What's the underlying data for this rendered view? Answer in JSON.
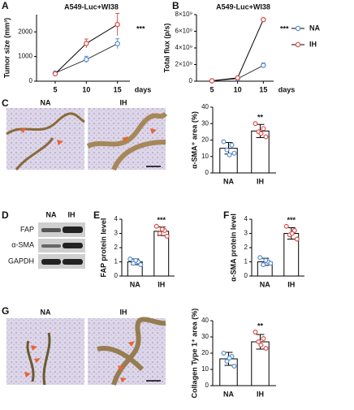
{
  "panels": [
    "A",
    "B",
    "C",
    "D",
    "E",
    "F",
    "G"
  ],
  "images": {
    "C": [
      "NA",
      "IH"
    ],
    "G": [
      "NA",
      "IH"
    ]
  },
  "blot": {
    "columns": [
      "NA",
      "IH"
    ],
    "rows": [
      "FAP",
      "α-SMA",
      "GAPDH"
    ]
  },
  "chart_data": [
    {
      "type": "line",
      "title": "A549-Luc+WI38",
      "ylabel": "Tumor size (mm³)",
      "xlabel": "days",
      "x": [
        5,
        10,
        15
      ],
      "xticks": [
        5,
        10,
        15
      ],
      "xlim": [
        2,
        17
      ],
      "ylim": [
        0,
        2700
      ],
      "yticks": [
        0,
        1000,
        2000
      ],
      "annotation": "***",
      "series": [
        {
          "color": "#5b8fd1",
          "values": [
            330,
            880,
            1520
          ],
          "errors": [
            50,
            130,
            200
          ]
        },
        {
          "color": "#d9534f",
          "values": [
            300,
            1530,
            2300
          ],
          "errors": [
            60,
            180,
            450
          ]
        }
      ]
    },
    {
      "type": "line",
      "title": "A549-Luc+WI38",
      "ylabel": "Total flux (p/s)",
      "xlabel": "days",
      "x": [
        5,
        10,
        15
      ],
      "xticks": [
        5,
        10,
        15
      ],
      "xlim": [
        2,
        17
      ],
      "ylim": [
        0,
        8000000000
      ],
      "yticks": [
        0,
        {
          "value": 2000000000,
          "label": "2×10⁹"
        },
        {
          "value": 4000000000,
          "label": "4×10⁹"
        },
        {
          "value": 6000000000,
          "label": "6×10⁹"
        },
        {
          "value": 8000000000,
          "label": "8×10⁹"
        }
      ],
      "annotation": "***",
      "legend": "right",
      "series": [
        {
          "name": "NA",
          "color": "#5b8fd1",
          "values": [
            50000000,
            300000000,
            1900000000
          ],
          "errors": [
            20000000,
            80000000,
            300000000
          ]
        },
        {
          "name": "IH",
          "color": "#d9534f",
          "values": [
            50000000,
            400000000,
            7400000000
          ],
          "errors": [
            20000000,
            100000000,
            100000000
          ]
        }
      ]
    },
    {
      "type": "bar",
      "ylabel": "α-SMA⁺ area (%)",
      "categories": [
        "NA",
        "IH"
      ],
      "ylim": [
        0,
        40
      ],
      "yticks": [
        0,
        10,
        20,
        30,
        40
      ],
      "values": [
        15,
        25.5
      ],
      "errors": [
        3.5,
        4
      ],
      "annotation": "**",
      "point_colors": [
        "#5b8fd1",
        "#d9534f"
      ],
      "points": [
        [
          19,
          17,
          14,
          12,
          11
        ],
        [
          30,
          27,
          25,
          22,
          24
        ]
      ]
    },
    {
      "type": "bar",
      "ylabel": "FAP protein level",
      "categories": [
        "NA",
        "IH"
      ],
      "ylim": [
        0,
        4
      ],
      "yticks": [
        0,
        1,
        2,
        3,
        4
      ],
      "values": [
        1,
        3.15
      ],
      "errors": [
        0.2,
        0.3
      ],
      "annotation": "***",
      "point_colors": [
        "#5b8fd1",
        "#d9534f"
      ],
      "points": [
        [
          1.2,
          1.0,
          0.9,
          0.8,
          1.1
        ],
        [
          3.5,
          3.2,
          3.0,
          2.8,
          3.3
        ]
      ]
    },
    {
      "type": "bar",
      "ylabel": "α-SMA protein level",
      "categories": [
        "NA",
        "IH"
      ],
      "ylim": [
        0,
        4
      ],
      "yticks": [
        0,
        1,
        2,
        3,
        4
      ],
      "values": [
        1,
        3
      ],
      "errors": [
        0.25,
        0.4
      ],
      "annotation": "***",
      "point_colors": [
        "#5b8fd1",
        "#d9534f"
      ],
      "points": [
        [
          1.3,
          1.0,
          0.8,
          0.9,
          1.1
        ],
        [
          3.5,
          3.2,
          2.9,
          2.6,
          3.0
        ]
      ]
    },
    {
      "type": "bar",
      "ylabel": "Collagen Type 1⁺ area (%)",
      "categories": [
        "NA",
        "IH"
      ],
      "ylim": [
        0,
        40
      ],
      "yticks": [
        0,
        10,
        20,
        30,
        40
      ],
      "values": [
        16.5,
        27
      ],
      "errors": [
        4,
        4.5
      ],
      "annotation": "**",
      "point_colors": [
        "#5b8fd1",
        "#d9534f"
      ],
      "points": [
        [
          20,
          18,
          15,
          12,
          17
        ],
        [
          33,
          29,
          27,
          23,
          25
        ]
      ]
    }
  ]
}
